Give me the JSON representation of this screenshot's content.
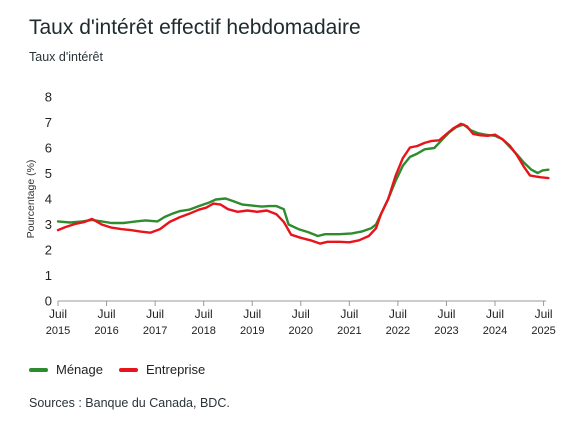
{
  "page": {
    "title": "Taux d'intérêt effectif hebdomadaire",
    "subtitle": "Taux d'intérêt",
    "source": "Sources : Banque du Canada, BDC."
  },
  "chart_data": {
    "type": "line",
    "title": "Taux d'intérêt effectif hebdomadaire",
    "subtitle": "Taux d'intérêt",
    "ylabel": "Pourcentage (%)",
    "xlabel": "",
    "ylim": [
      0,
      8
    ],
    "yticks": [
      "0",
      "1",
      "2",
      "3",
      "4",
      "5",
      "6",
      "7",
      "8"
    ],
    "xlim": [
      2015.5,
      2025.55
    ],
    "xticks": [
      {
        "x": 2015.5,
        "line1": "Juil",
        "line2": "2015"
      },
      {
        "x": 2016.5,
        "line1": "Juil",
        "line2": "2016"
      },
      {
        "x": 2017.5,
        "line1": "Juil",
        "line2": "2017"
      },
      {
        "x": 2018.5,
        "line1": "Juil",
        "line2": "2018"
      },
      {
        "x": 2019.5,
        "line1": "Juil",
        "line2": "2019"
      },
      {
        "x": 2020.5,
        "line1": "Juil",
        "line2": "2020"
      },
      {
        "x": 2021.5,
        "line1": "Juil",
        "line2": "2021"
      },
      {
        "x": 2022.5,
        "line1": "Juil",
        "line2": "2022"
      },
      {
        "x": 2023.5,
        "line1": "Juil",
        "line2": "2023"
      },
      {
        "x": 2024.5,
        "line1": "Juil",
        "line2": "2024"
      },
      {
        "x": 2025.5,
        "line1": "Juil",
        "line2": "2025"
      }
    ],
    "grid": false,
    "legend_position": "bottom-left",
    "series": [
      {
        "name": "Ménage",
        "color": "#2e8b2e",
        "points": [
          [
            2015.5,
            3.12
          ],
          [
            2015.75,
            3.08
          ],
          [
            2016.0,
            3.12
          ],
          [
            2016.2,
            3.18
          ],
          [
            2016.4,
            3.12
          ],
          [
            2016.6,
            3.06
          ],
          [
            2016.85,
            3.06
          ],
          [
            2017.1,
            3.12
          ],
          [
            2017.3,
            3.16
          ],
          [
            2017.55,
            3.12
          ],
          [
            2017.7,
            3.3
          ],
          [
            2017.85,
            3.42
          ],
          [
            2018.0,
            3.52
          ],
          [
            2018.2,
            3.58
          ],
          [
            2018.4,
            3.72
          ],
          [
            2018.6,
            3.85
          ],
          [
            2018.75,
            3.98
          ],
          [
            2018.95,
            4.02
          ],
          [
            2019.1,
            3.92
          ],
          [
            2019.3,
            3.78
          ],
          [
            2019.5,
            3.74
          ],
          [
            2019.7,
            3.7
          ],
          [
            2019.85,
            3.72
          ],
          [
            2020.0,
            3.72
          ],
          [
            2020.15,
            3.6
          ],
          [
            2020.25,
            3.0
          ],
          [
            2020.45,
            2.82
          ],
          [
            2020.65,
            2.7
          ],
          [
            2020.85,
            2.55
          ],
          [
            2021.0,
            2.62
          ],
          [
            2021.3,
            2.62
          ],
          [
            2021.55,
            2.65
          ],
          [
            2021.75,
            2.72
          ],
          [
            2021.95,
            2.85
          ],
          [
            2022.05,
            3.0
          ],
          [
            2022.15,
            3.4
          ],
          [
            2022.3,
            4.0
          ],
          [
            2022.45,
            4.7
          ],
          [
            2022.6,
            5.3
          ],
          [
            2022.75,
            5.65
          ],
          [
            2022.9,
            5.78
          ],
          [
            2023.05,
            5.95
          ],
          [
            2023.25,
            6.0
          ],
          [
            2023.4,
            6.3
          ],
          [
            2023.55,
            6.6
          ],
          [
            2023.7,
            6.82
          ],
          [
            2023.85,
            6.92
          ],
          [
            2024.0,
            6.7
          ],
          [
            2024.15,
            6.58
          ],
          [
            2024.3,
            6.52
          ],
          [
            2024.5,
            6.48
          ],
          [
            2024.65,
            6.35
          ],
          [
            2024.8,
            6.05
          ],
          [
            2024.95,
            5.75
          ],
          [
            2025.1,
            5.42
          ],
          [
            2025.25,
            5.15
          ],
          [
            2025.38,
            5.02
          ],
          [
            2025.48,
            5.12
          ],
          [
            2025.6,
            5.15
          ]
        ]
      },
      {
        "name": "Entreprise",
        "color": "#e8141c",
        "points": [
          [
            2015.5,
            2.78
          ],
          [
            2015.65,
            2.9
          ],
          [
            2015.85,
            3.02
          ],
          [
            2016.05,
            3.1
          ],
          [
            2016.2,
            3.22
          ],
          [
            2016.4,
            3.0
          ],
          [
            2016.6,
            2.88
          ],
          [
            2016.8,
            2.82
          ],
          [
            2017.0,
            2.78
          ],
          [
            2017.2,
            2.72
          ],
          [
            2017.4,
            2.68
          ],
          [
            2017.6,
            2.82
          ],
          [
            2017.8,
            3.1
          ],
          [
            2018.0,
            3.28
          ],
          [
            2018.2,
            3.42
          ],
          [
            2018.4,
            3.58
          ],
          [
            2018.55,
            3.66
          ],
          [
            2018.7,
            3.82
          ],
          [
            2018.85,
            3.78
          ],
          [
            2019.0,
            3.6
          ],
          [
            2019.2,
            3.5
          ],
          [
            2019.4,
            3.55
          ],
          [
            2019.6,
            3.5
          ],
          [
            2019.8,
            3.55
          ],
          [
            2020.0,
            3.4
          ],
          [
            2020.15,
            3.1
          ],
          [
            2020.3,
            2.6
          ],
          [
            2020.5,
            2.48
          ],
          [
            2020.7,
            2.38
          ],
          [
            2020.9,
            2.25
          ],
          [
            2021.05,
            2.32
          ],
          [
            2021.3,
            2.32
          ],
          [
            2021.5,
            2.3
          ],
          [
            2021.7,
            2.38
          ],
          [
            2021.9,
            2.55
          ],
          [
            2022.05,
            2.85
          ],
          [
            2022.15,
            3.4
          ],
          [
            2022.3,
            4.0
          ],
          [
            2022.45,
            4.9
          ],
          [
            2022.6,
            5.6
          ],
          [
            2022.75,
            6.02
          ],
          [
            2022.9,
            6.08
          ],
          [
            2023.05,
            6.2
          ],
          [
            2023.2,
            6.28
          ],
          [
            2023.35,
            6.3
          ],
          [
            2023.5,
            6.55
          ],
          [
            2023.65,
            6.78
          ],
          [
            2023.8,
            6.95
          ],
          [
            2023.92,
            6.85
          ],
          [
            2024.05,
            6.55
          ],
          [
            2024.2,
            6.5
          ],
          [
            2024.35,
            6.48
          ],
          [
            2024.5,
            6.52
          ],
          [
            2024.65,
            6.35
          ],
          [
            2024.8,
            6.1
          ],
          [
            2024.95,
            5.72
          ],
          [
            2025.1,
            5.25
          ],
          [
            2025.22,
            4.92
          ],
          [
            2025.35,
            4.88
          ],
          [
            2025.45,
            4.85
          ],
          [
            2025.6,
            4.82
          ]
        ]
      }
    ]
  },
  "legend": [
    {
      "label": "Ménage",
      "color": "#2e8b2e"
    },
    {
      "label": "Entreprise",
      "color": "#e8141c"
    }
  ]
}
